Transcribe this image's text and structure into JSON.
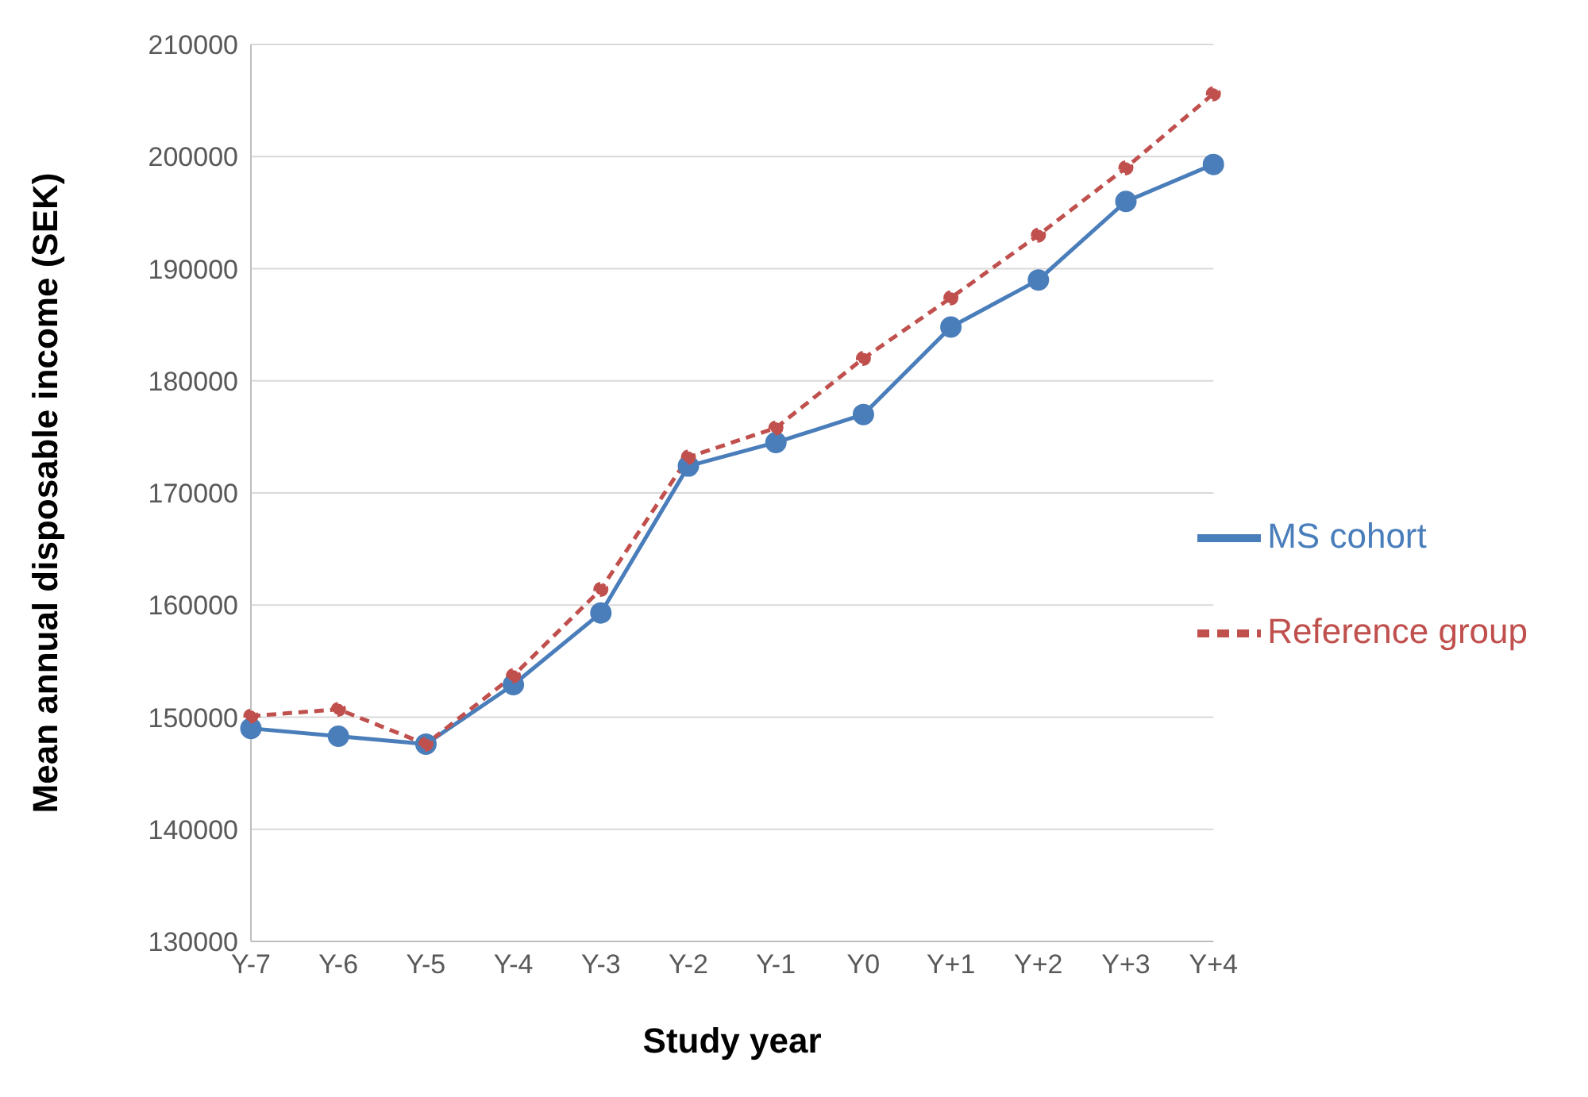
{
  "chart_data": {
    "type": "line",
    "xlabel": "Study year",
    "ylabel": "Mean annual disposable income (SEK)",
    "categories": [
      "Y-7",
      "Y-6",
      "Y-5",
      "Y-4",
      "Y-3",
      "Y-2",
      "Y-1",
      "Y0",
      "Y+1",
      "Y+2",
      "Y+3",
      "Y+4"
    ],
    "series": [
      {
        "name": "MS cohort",
        "color": "#4a7ebb",
        "line_style": "solid",
        "values": [
          149000,
          148300,
          147600,
          152900,
          159300,
          172400,
          174500,
          177000,
          184800,
          189000,
          196000,
          199300
        ]
      },
      {
        "name": "Reference group",
        "color": "#c0504d",
        "line_style": "dashed",
        "values": [
          150100,
          150700,
          147600,
          153700,
          161400,
          173200,
          175800,
          182000,
          187400,
          193000,
          199000,
          205600
        ]
      }
    ],
    "ylim": [
      130000,
      210000
    ],
    "yticks": [
      130000,
      140000,
      150000,
      160000,
      170000,
      180000,
      190000,
      200000,
      210000
    ],
    "grid": "y",
    "legend": "right",
    "marker": "circle"
  }
}
